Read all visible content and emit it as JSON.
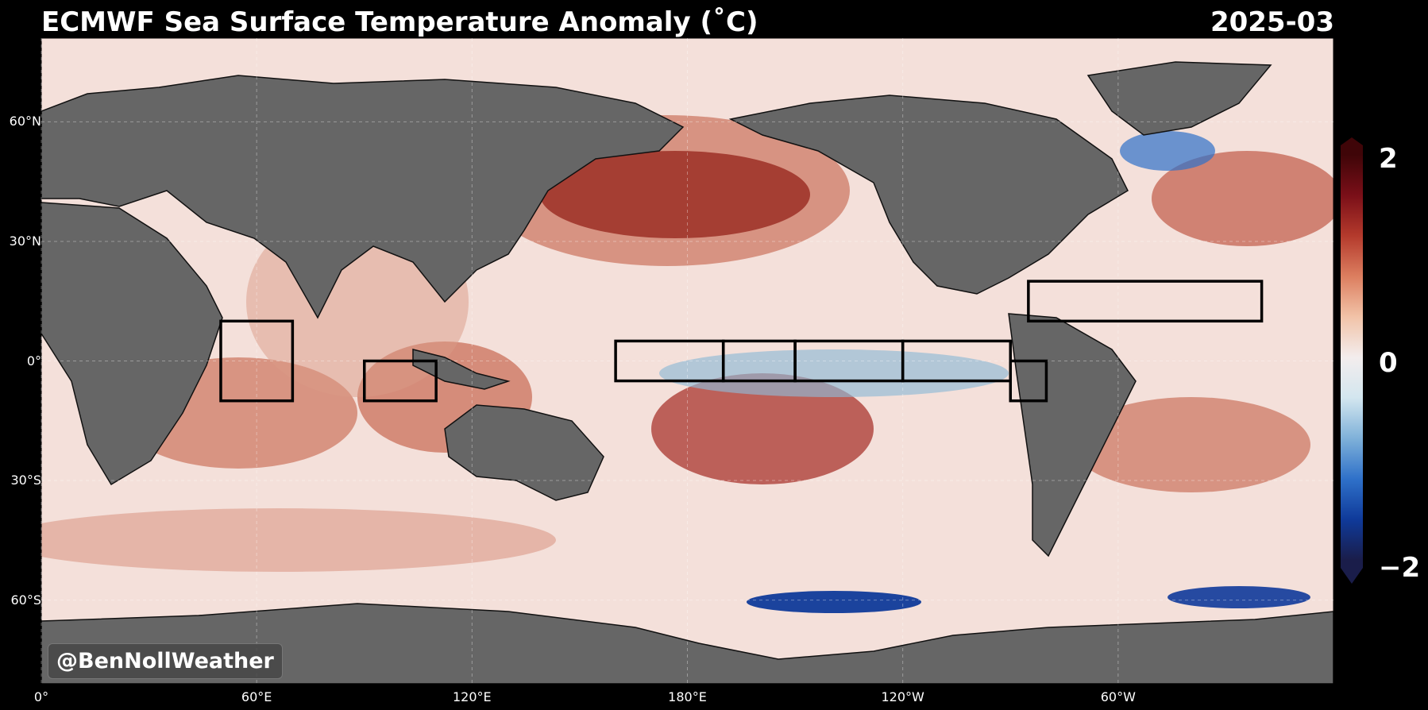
{
  "header": {
    "title": "ECMWF Sea Surface Temperature Anomaly (˚C)",
    "date": "2025-03"
  },
  "axes": {
    "lat_ticks": [
      {
        "label": "60°N",
        "lat": 60
      },
      {
        "label": "30°N",
        "lat": 30
      },
      {
        "label": "0°",
        "lat": 0
      },
      {
        "label": "30°S",
        "lat": -30
      },
      {
        "label": "60°S",
        "lat": -60
      }
    ],
    "lon_ticks": [
      {
        "label": "0°",
        "lon": 0
      },
      {
        "label": "60°E",
        "lon": 60
      },
      {
        "label": "120°E",
        "lon": 120
      },
      {
        "label": "180°E",
        "lon": 180
      },
      {
        "label": "120°W",
        "lon": 240
      },
      {
        "label": "60°W",
        "lon": 300
      }
    ]
  },
  "colorbar": {
    "max_label": "2",
    "mid_label": "0",
    "min_label": "−2",
    "vmin": -2,
    "vmax": 2,
    "colors": [
      "#1a1d4a",
      "#0f3a9a",
      "#2f71c9",
      "#7fb1d9",
      "#d3e6ef",
      "#f3eded",
      "#f2c3a8",
      "#dc7e5f",
      "#b43a2c",
      "#7a0f18",
      "#3f0508"
    ]
  },
  "regions": [
    {
      "name": "iod-west",
      "lon1": 50,
      "lon2": 70,
      "lat1": -10,
      "lat2": 10
    },
    {
      "name": "iod-east",
      "lon1": 90,
      "lon2": 110,
      "lat1": -10,
      "lat2": 0
    },
    {
      "name": "nino-4-west",
      "lon1": 160,
      "lon2": 190,
      "lat1": -5,
      "lat2": 5
    },
    {
      "name": "nino-34-west",
      "lon1": 190,
      "lon2": 210,
      "lat1": -5,
      "lat2": 5
    },
    {
      "name": "nino-3-west",
      "lon1": 210,
      "lon2": 240,
      "lat1": -5,
      "lat2": 5
    },
    {
      "name": "nino-3-east",
      "lon1": 240,
      "lon2": 270,
      "lat1": -5,
      "lat2": 5
    },
    {
      "name": "nino-12",
      "lon1": 270,
      "lon2": 280,
      "lat1": -10,
      "lat2": 0
    },
    {
      "name": "mdr-atlantic",
      "lon1": 275,
      "lon2": 340,
      "lat1": 10,
      "lat2": 20
    }
  ],
  "watermark": "@BenNollWeather",
  "colors": {
    "land": "#666666",
    "ocean_base": "#f4e0da",
    "background": "#000000"
  }
}
